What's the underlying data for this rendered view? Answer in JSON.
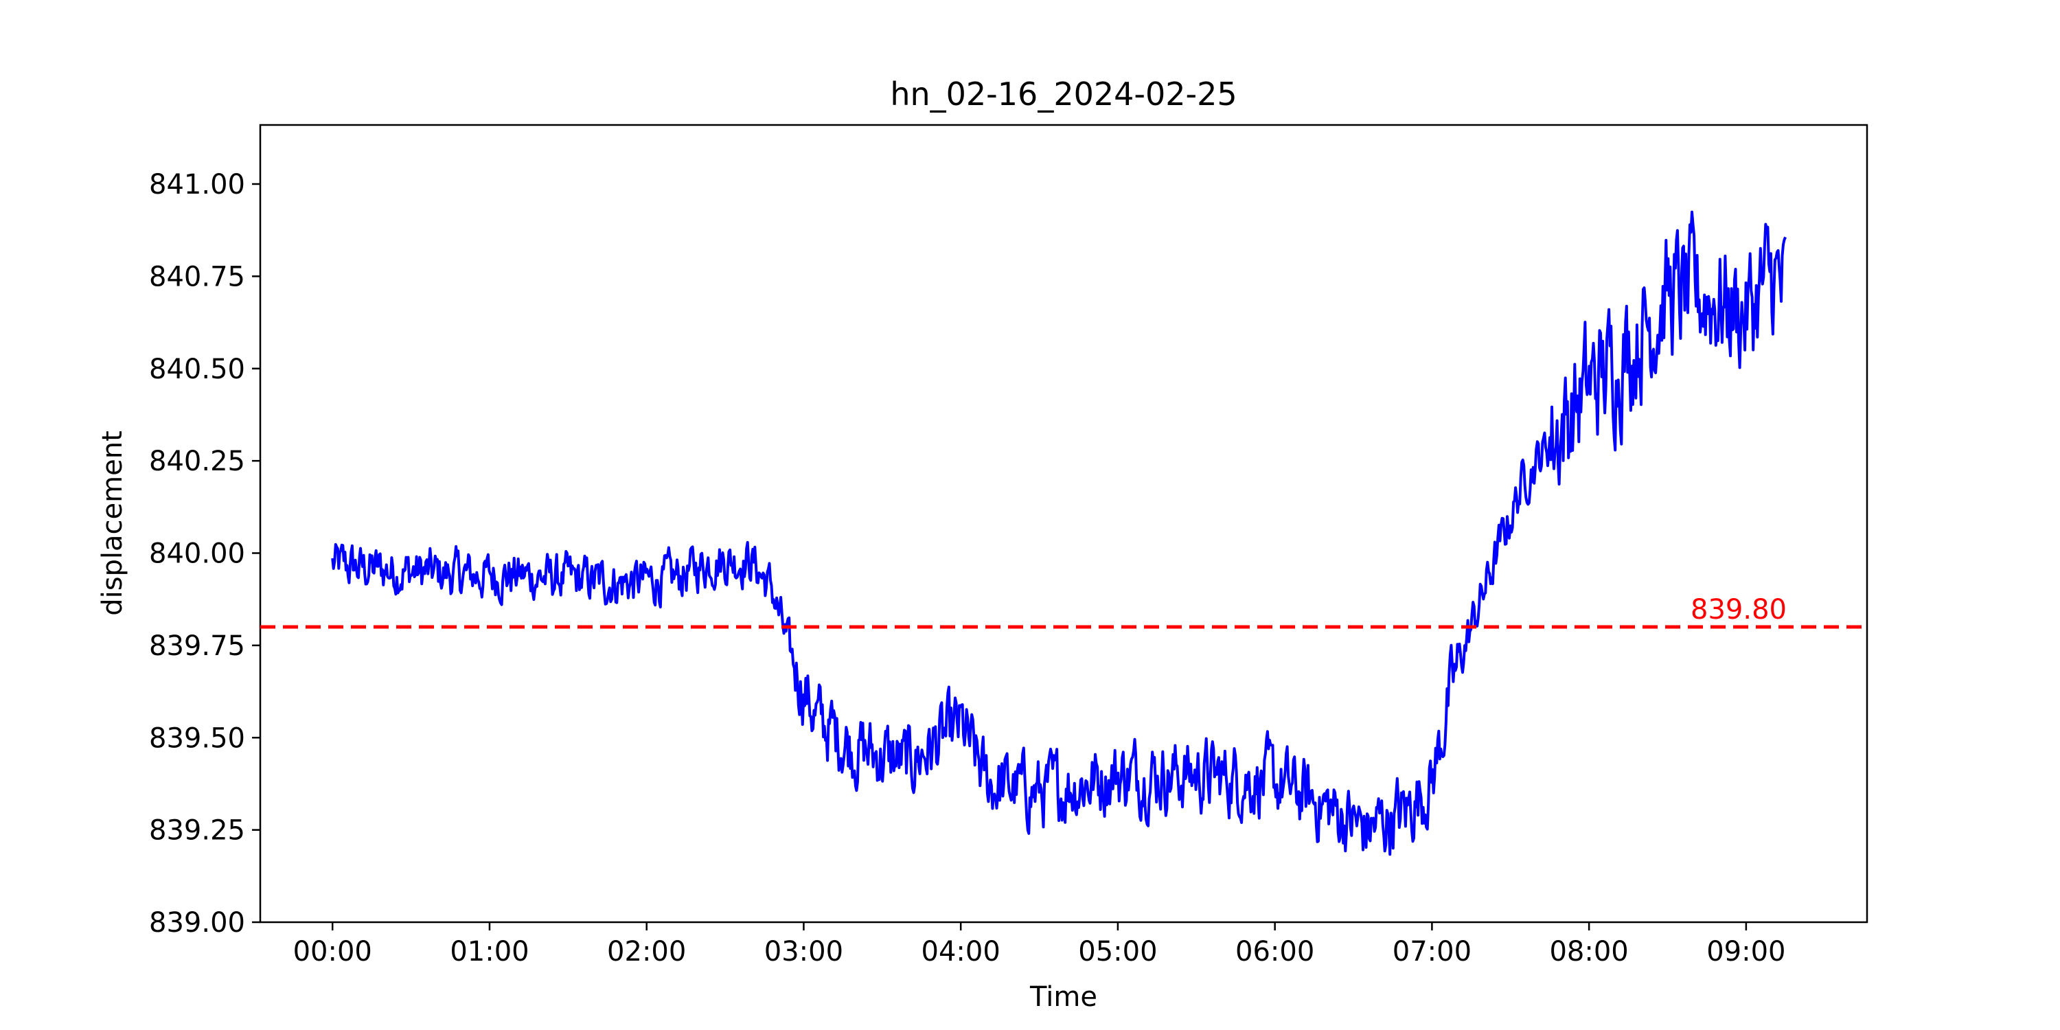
{
  "chart_data": {
    "type": "line",
    "title": "hn_02-16_2024-02-25",
    "xlabel": "Time",
    "ylabel": "displacement",
    "x_range_hours": [
      -0.46,
      9.77
    ],
    "ylim": [
      839.0,
      841.16
    ],
    "x_ticks": [
      "00:00",
      "01:00",
      "02:00",
      "03:00",
      "04:00",
      "05:00",
      "06:00",
      "07:00",
      "08:00",
      "09:00"
    ],
    "y_ticks": [
      "839.00",
      "839.25",
      "839.50",
      "839.75",
      "840.00",
      "840.25",
      "840.50",
      "840.75",
      "841.00"
    ],
    "grid": false,
    "series": [
      {
        "color": "#0000ff",
        "noise_amplitude": 0.06,
        "x": [
          "00:00",
          "00:10",
          "00:30",
          "00:50",
          "01:10",
          "01:30",
          "01:50",
          "02:10",
          "02:25",
          "02:40",
          "02:48",
          "02:55",
          "03:05",
          "03:20",
          "03:40",
          "04:00",
          "04:10",
          "04:30",
          "05:00",
          "05:30",
          "06:00",
          "06:15",
          "06:35",
          "06:50",
          "07:00",
          "07:08",
          "07:15",
          "07:25",
          "07:35",
          "07:50",
          "08:00",
          "08:15",
          "08:30",
          "08:45",
          "09:00",
          "09:10",
          "09:15"
        ],
        "y": [
          839.97,
          839.96,
          839.95,
          839.94,
          839.94,
          839.93,
          839.92,
          839.93,
          839.98,
          839.98,
          839.9,
          839.72,
          839.55,
          839.47,
          839.43,
          839.53,
          839.38,
          839.35,
          839.4,
          839.4,
          839.38,
          839.33,
          839.25,
          839.3,
          839.38,
          839.65,
          839.8,
          840.0,
          840.2,
          840.35,
          840.45,
          840.55,
          840.7,
          840.7,
          840.65,
          840.75,
          840.7
        ]
      }
    ],
    "threshold": {
      "value": 839.8,
      "label": "839.80",
      "color": "#ff0000"
    }
  }
}
